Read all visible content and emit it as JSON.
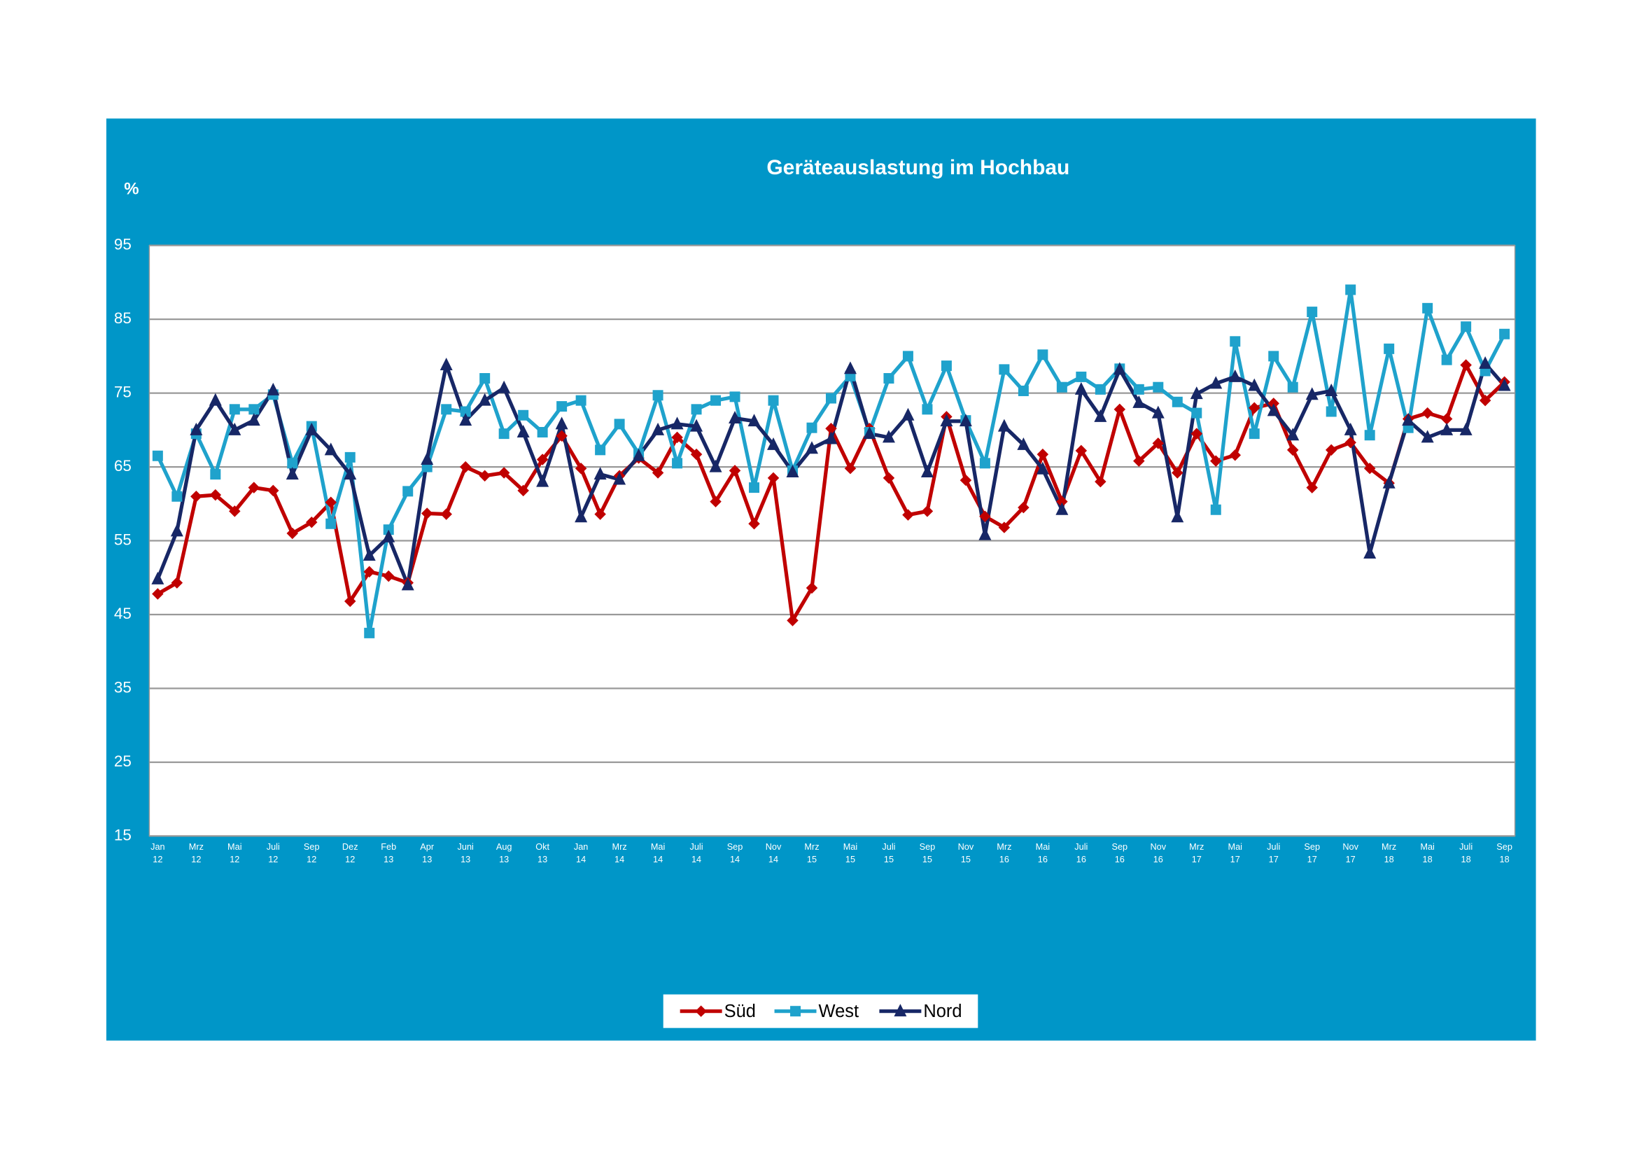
{
  "chart_data": {
    "type": "line",
    "title": "Geräteauslastung im Hochbau",
    "y_axis_label": "%",
    "categories": [
      [
        "Jan",
        "12"
      ],
      null,
      [
        "Mrz",
        "12"
      ],
      null,
      [
        "Mai",
        "12"
      ],
      null,
      [
        "Juli",
        "12"
      ],
      null,
      [
        "Sep",
        "12"
      ],
      null,
      [
        "Dez",
        "12"
      ],
      null,
      [
        "Feb",
        "13"
      ],
      null,
      [
        "Apr",
        "13"
      ],
      null,
      [
        "Juni",
        "13"
      ],
      null,
      [
        "Aug",
        "13"
      ],
      null,
      [
        "Okt",
        "13"
      ],
      null,
      [
        "Jan",
        "14"
      ],
      null,
      [
        "Mrz",
        "14"
      ],
      null,
      [
        "Mai",
        "14"
      ],
      null,
      [
        "Juli",
        "14"
      ],
      null,
      [
        "Sep",
        "14"
      ],
      null,
      [
        "Nov",
        "14"
      ],
      null,
      [
        "Mrz",
        "15"
      ],
      null,
      [
        "Mai",
        "15"
      ],
      null,
      [
        "Juli",
        "15"
      ],
      null,
      [
        "Sep",
        "15"
      ],
      null,
      [
        "Nov",
        "15"
      ],
      null,
      [
        "Mrz",
        "16"
      ],
      null,
      [
        "Mai",
        "16"
      ],
      null,
      [
        "Juli",
        "16"
      ],
      null,
      [
        "Sep",
        "16"
      ],
      null,
      [
        "Nov",
        "16"
      ],
      null,
      [
        "Mrz",
        "17"
      ],
      null,
      [
        "Mai",
        "17"
      ],
      null,
      [
        "Juli",
        "17"
      ],
      null,
      [
        "Sep",
        "17"
      ],
      null,
      [
        "Nov",
        "17"
      ],
      null,
      [
        "Mrz",
        "18"
      ],
      null,
      [
        "Mai",
        "18"
      ],
      null,
      [
        "Juli",
        "18"
      ],
      null,
      [
        "Sep",
        "18"
      ]
    ],
    "series": [
      {
        "name": "Süd",
        "color": "#c00000",
        "marker": "diamond",
        "values": [
          47.8,
          49.3,
          61,
          61.2,
          59,
          62.2,
          61.8,
          56,
          57.5,
          60.2,
          46.8,
          50.8,
          50.2,
          49.3,
          58.7,
          58.6,
          65,
          63.8,
          64.2,
          61.8,
          66,
          69.2,
          64.8,
          58.6,
          63.8,
          66.2,
          64.2,
          69,
          66.7,
          60.3,
          64.5,
          57.3,
          63.5,
          44.2,
          48.6,
          70.2,
          64.8,
          70.2,
          63.5,
          58.5,
          59,
          71.8,
          63.2,
          58.3,
          56.8,
          59.5,
          66.7,
          60.3,
          67.2,
          63,
          72.8,
          65.8,
          68.2,
          64.2,
          69.5,
          65.8,
          66.6,
          73,
          73.6,
          67.3,
          62.2,
          67.3,
          68.3,
          64.8,
          62.8,
          71.5,
          72.3,
          71.5,
          78.8,
          74,
          76.5
        ]
      },
      {
        "name": "West",
        "color": "#1fa2cc",
        "marker": "square",
        "values": [
          66.5,
          61,
          69.5,
          64,
          72.8,
          72.8,
          74.8,
          65.5,
          70.5,
          57.3,
          66.3,
          42.5,
          56.5,
          61.7,
          65,
          72.8,
          72.5,
          77,
          69.5,
          72,
          69.7,
          73.2,
          74,
          67.3,
          70.8,
          66.8,
          74.7,
          65.5,
          72.8,
          74,
          74.5,
          62.2,
          74,
          64.5,
          70.3,
          74.3,
          77.3,
          69.7,
          77,
          80,
          72.8,
          78.7,
          71.3,
          65.5,
          78.2,
          75.3,
          80.2,
          75.8,
          77.2,
          75.5,
          78.3,
          75.5,
          75.8,
          73.8,
          72.3,
          59.2,
          82,
          69.5,
          80,
          75.8,
          86,
          72.5,
          89,
          69.3,
          81,
          70.3,
          86.5,
          79.5,
          84,
          78,
          83
        ]
      },
      {
        "name": "Nord",
        "color": "#172766",
        "marker": "triangle",
        "values": [
          49.8,
          56.3,
          70,
          74,
          70,
          71.3,
          75.4,
          64,
          70,
          67.3,
          64,
          53,
          55.5,
          49,
          66,
          78.8,
          71.3,
          74,
          75.7,
          69.7,
          63,
          70.8,
          58.2,
          64,
          63.3,
          66.5,
          70,
          70.8,
          70.5,
          65,
          71.6,
          71.2,
          68,
          64.3,
          67.5,
          68.8,
          78.3,
          69.5,
          69,
          72,
          64.3,
          71.2,
          71.2,
          55.8,
          70.5,
          68,
          64.7,
          59.2,
          75.5,
          71.8,
          78.2,
          73.7,
          72.3,
          58.2,
          74.9,
          76.3,
          77.2,
          76,
          72.6,
          69.3,
          74.8,
          75.3,
          70,
          53.3,
          62.8,
          71.3,
          69,
          70,
          70,
          79,
          76
        ]
      }
    ],
    "ylim": [
      15,
      95
    ],
    "yticks": [
      15,
      25,
      35,
      45,
      55,
      65,
      75,
      85,
      95
    ],
    "grid": true,
    "legend": "bottom"
  }
}
